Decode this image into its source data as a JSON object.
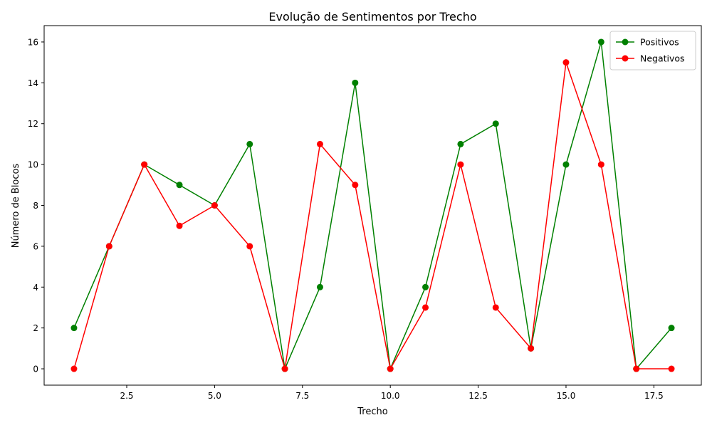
{
  "chart_data": {
    "type": "line",
    "title": "Evolução de Sentimentos por Trecho",
    "xlabel": "Trecho",
    "ylabel": "Número de Blocos",
    "x": [
      1,
      2,
      3,
      4,
      5,
      6,
      7,
      8,
      9,
      10,
      11,
      12,
      13,
      14,
      15,
      16,
      17,
      18
    ],
    "series": [
      {
        "name": "Positivos",
        "color": "#008000",
        "values": [
          2,
          6,
          10,
          9,
          8,
          11,
          0,
          4,
          14,
          0,
          4,
          11,
          12,
          1,
          10,
          16,
          0,
          2
        ]
      },
      {
        "name": "Negativos",
        "color": "#ff0000",
        "values": [
          0,
          6,
          10,
          7,
          8,
          6,
          0,
          11,
          9,
          0,
          3,
          10,
          3,
          1,
          15,
          10,
          0,
          0
        ]
      }
    ],
    "xlim": [
      0.15,
      18.85
    ],
    "ylim": [
      -0.8,
      16.8
    ],
    "xticks": [
      2.5,
      5.0,
      7.5,
      10.0,
      12.5,
      15.0,
      17.5
    ],
    "xtick_labels": [
      "2.5",
      "5.0",
      "7.5",
      "10.0",
      "12.5",
      "15.0",
      "17.5"
    ],
    "yticks": [
      0,
      2,
      4,
      6,
      8,
      10,
      12,
      14,
      16
    ],
    "ytick_labels": [
      "0",
      "2",
      "4",
      "6",
      "8",
      "10",
      "12",
      "14",
      "16"
    ],
    "grid": false,
    "legend_position": "top-right",
    "marker": "circle"
  }
}
